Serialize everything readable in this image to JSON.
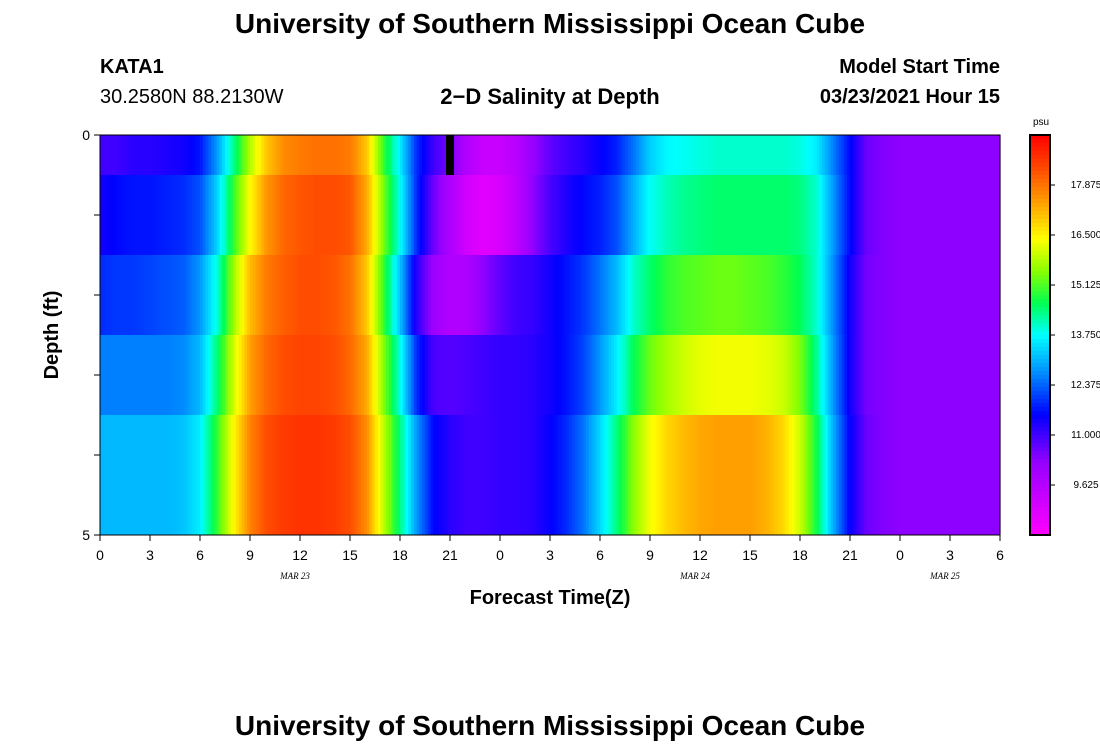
{
  "header": {
    "title": "University of Southern Mississippi Ocean Cube",
    "station_id": "KATA1",
    "coords": "30.2580N 88.2130W",
    "plot_title": "2−D Salinity at Depth",
    "model_label": "Model Start Time",
    "model_time": "03/23/2021 Hour 15"
  },
  "footer": {
    "title": "University of Southern Mississippi Ocean Cube"
  },
  "chart_data": {
    "type": "heatmap",
    "title": "2−D Salinity at Depth",
    "xlabel": "Forecast Time(Z)",
    "ylabel": "Depth (ft)",
    "x_tick_labels": [
      "0",
      "3",
      "6",
      "9",
      "12",
      "15",
      "18",
      "21",
      "0",
      "3",
      "6",
      "9",
      "12",
      "15",
      "18",
      "21",
      "0",
      "3",
      "6"
    ],
    "x_date_labels": [
      "MAR 23",
      "MAR 24",
      "MAR 25"
    ],
    "x_hours": [
      0,
      1,
      2,
      3,
      4,
      5,
      6,
      7,
      8,
      9,
      10,
      11,
      12,
      13,
      14,
      15,
      16,
      17,
      18,
      19,
      20,
      21,
      22,
      23,
      24,
      25,
      26,
      27,
      28,
      29,
      30,
      31,
      32,
      33,
      34,
      35,
      36,
      37,
      38,
      39,
      40,
      41,
      42,
      43,
      44,
      45,
      46,
      47,
      48,
      49,
      50,
      51,
      52,
      53,
      54
    ],
    "y_tick_labels": [
      "0",
      "5"
    ],
    "ylim": [
      0,
      5
    ],
    "depth_layers": [
      0,
      1,
      2,
      3,
      4
    ],
    "colorbar": {
      "unit": "psu",
      "range": [
        8.25,
        19.25
      ],
      "labels": [
        "17.875",
        "16.500",
        "15.125",
        "13.750",
        "12.375",
        "11.000",
        "9.625"
      ],
      "label_values": [
        17.875,
        16.5,
        15.125,
        13.75,
        12.375,
        11.0,
        9.625
      ]
    },
    "current_time_marker_hour": 21,
    "salinity_psu": [
      [
        11.0,
        11.0,
        11.2,
        11.2,
        11.3,
        11.4,
        11.7,
        12.8,
        14.3,
        15.8,
        17.0,
        17.6,
        17.8,
        17.9,
        17.9,
        17.8,
        17.0,
        15.0,
        13.6,
        11.9,
        11.0,
        10.5,
        9.7,
        9.3,
        9.3,
        9.6,
        10.2,
        10.7,
        11.0,
        11.2,
        11.5,
        11.8,
        12.5,
        13.3,
        13.7,
        13.8,
        13.9,
        14.0,
        14.0,
        14.0,
        14.0,
        14.0,
        13.9,
        13.6,
        12.6,
        11.6,
        10.6,
        10.4,
        10.3,
        10.3,
        10.3,
        10.3,
        10.3,
        10.3,
        10.3
      ],
      [
        11.4,
        11.6,
        11.7,
        11.7,
        11.8,
        11.9,
        12.2,
        13.3,
        14.9,
        16.4,
        17.5,
        18.0,
        18.2,
        18.3,
        18.3,
        18.2,
        17.3,
        15.4,
        13.8,
        11.9,
        10.6,
        9.8,
        9.1,
        8.8,
        9.0,
        9.5,
        10.3,
        10.9,
        11.3,
        11.6,
        11.8,
        12.2,
        13.0,
        13.8,
        14.1,
        14.3,
        14.4,
        14.5,
        14.5,
        14.5,
        14.5,
        14.5,
        14.4,
        14.0,
        12.8,
        11.6,
        10.6,
        10.4,
        10.3,
        10.3,
        10.3,
        10.3,
        10.3,
        10.3,
        10.3
      ],
      [
        11.9,
        12.0,
        12.0,
        12.1,
        12.2,
        12.3,
        12.8,
        13.9,
        15.6,
        17.1,
        17.8,
        18.1,
        18.3,
        18.3,
        18.2,
        17.9,
        17.0,
        15.0,
        13.2,
        11.2,
        10.1,
        9.7,
        9.8,
        10.3,
        10.7,
        11.0,
        11.1,
        11.4,
        11.7,
        12.0,
        12.5,
        13.1,
        14.0,
        14.5,
        14.9,
        15.1,
        15.2,
        15.3,
        15.3,
        15.2,
        15.1,
        14.9,
        14.6,
        14.0,
        12.7,
        11.4,
        10.5,
        10.4,
        10.3,
        10.3,
        10.3,
        10.3,
        10.3,
        10.3,
        10.3
      ],
      [
        12.6,
        12.6,
        12.6,
        12.6,
        12.6,
        12.7,
        13.1,
        14.4,
        16.0,
        17.4,
        18.0,
        18.3,
        18.4,
        18.4,
        18.3,
        18.0,
        17.3,
        15.5,
        13.9,
        11.9,
        10.9,
        10.8,
        10.9,
        11.0,
        11.1,
        11.1,
        11.2,
        11.4,
        11.7,
        12.1,
        12.8,
        13.6,
        14.6,
        15.3,
        15.7,
        16.0,
        16.2,
        16.3,
        16.3,
        16.3,
        16.2,
        16.0,
        15.4,
        14.3,
        12.8,
        11.4,
        10.5,
        10.4,
        10.3,
        10.3,
        10.3,
        10.3,
        10.3,
        10.3,
        10.3
      ],
      [
        13.1,
        13.1,
        13.1,
        13.1,
        13.1,
        13.2,
        13.6,
        14.9,
        16.4,
        17.7,
        18.3,
        18.5,
        18.6,
        18.6,
        18.5,
        18.3,
        17.6,
        15.9,
        14.4,
        12.8,
        11.6,
        11.2,
        11.0,
        11.0,
        11.1,
        11.1,
        11.2,
        11.5,
        11.9,
        12.5,
        13.4,
        14.4,
        15.5,
        16.3,
        16.8,
        17.1,
        17.3,
        17.4,
        17.4,
        17.4,
        17.2,
        16.8,
        16.0,
        14.7,
        13.0,
        11.5,
        10.6,
        10.4,
        10.3,
        10.3,
        10.3,
        10.3,
        10.3,
        10.3,
        10.3
      ]
    ]
  }
}
